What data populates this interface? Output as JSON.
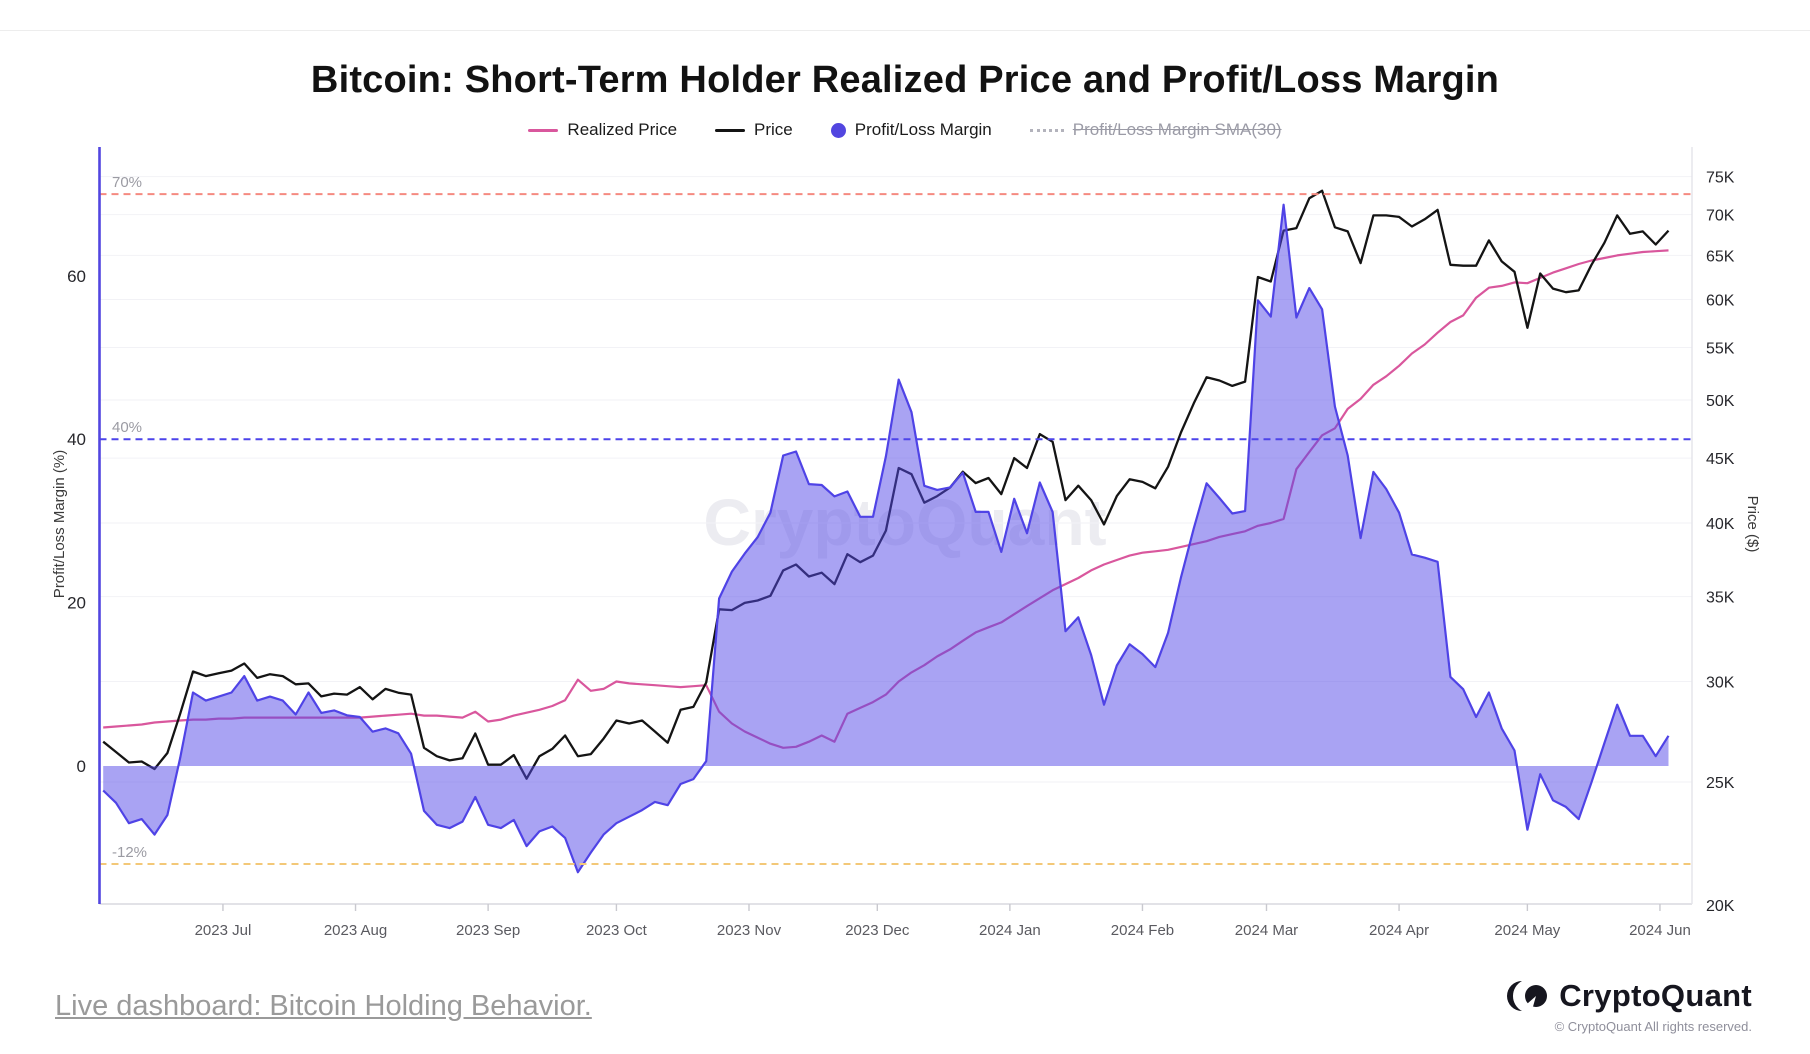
{
  "title": "Bitcoin: Short-Term Holder Realized Price and Profit/Loss Margin",
  "watermark": "CryptoQuant",
  "legend": {
    "items": [
      {
        "label": "Realized Price",
        "type": "line",
        "color": "#d9579d",
        "disabled": false
      },
      {
        "label": "Price",
        "type": "line",
        "color": "#141414",
        "disabled": false
      },
      {
        "label": "Profit/Loss Margin",
        "type": "dot",
        "color": "#5246e0",
        "disabled": false
      },
      {
        "label": "Profit/Loss Margin SMA(30)",
        "type": "dotted",
        "color": "#b3b3bc",
        "disabled": true
      }
    ]
  },
  "footer": {
    "link_text": "Live dashboard: Bitcoin Holding Behavior.",
    "brand_name": "CryptoQuant",
    "copyright": "© CryptoQuant All rights reserved."
  },
  "chart_data": {
    "type": "line+area",
    "x_start": "2023-06-03",
    "x_step_days": 3,
    "x_ticks": {
      "labels": [
        "2023 Jul",
        "2023 Aug",
        "2023 Sep",
        "2023 Oct",
        "2023 Nov",
        "2023 Dec",
        "2024 Jan",
        "2024 Feb",
        "2024 Mar",
        "2024 Apr",
        "2024 May",
        "2024 Jun"
      ],
      "day_offsets": [
        28,
        59,
        90,
        120,
        151,
        181,
        212,
        243,
        272,
        303,
        333,
        364
      ]
    },
    "y_left": {
      "label": "Profit/Loss Margin (%)",
      "ticks": [
        0,
        20,
        40,
        60
      ],
      "range": [
        -17.5,
        75.8
      ],
      "ref_lines": [
        {
          "value": 70,
          "label": "70%",
          "color": "#f58a80"
        },
        {
          "value": 40,
          "label": "40%",
          "color": "#4c43ea"
        },
        {
          "value": -12,
          "label": "-12%",
          "color": "#f3c878"
        }
      ]
    },
    "y_right": {
      "label": "Price ($)",
      "scale": "log",
      "ticks_k": [
        20,
        25,
        30,
        35,
        40,
        45,
        50,
        55,
        60,
        65,
        70,
        75
      ],
      "tick_suffix": "K"
    },
    "series": [
      {
        "name": "Profit/Loss Margin",
        "axis": "left",
        "unit": "%",
        "style": "area",
        "color": "#4f43e6",
        "values": [
          -3.0,
          -4.5,
          -7.0,
          -6.5,
          -8.4,
          -6.0,
          1.0,
          9.0,
          8.0,
          8.5,
          9.0,
          11.0,
          8.0,
          8.5,
          8.0,
          6.3,
          9.0,
          6.5,
          6.8,
          6.2,
          6.0,
          4.2,
          4.6,
          4.0,
          1.5,
          -5.5,
          -7.2,
          -7.6,
          -6.8,
          -3.8,
          -7.2,
          -7.6,
          -6.6,
          -9.8,
          -8.0,
          -7.4,
          -8.8,
          -13.0,
          -10.6,
          -8.4,
          -7.0,
          -6.2,
          -5.4,
          -4.4,
          -4.8,
          -2.2,
          -1.6,
          0.6,
          20.5,
          23.8,
          26.0,
          28.0,
          31.0,
          38.0,
          38.5,
          34.5,
          34.4,
          33.0,
          33.6,
          30.5,
          30.5,
          37.9,
          47.3,
          43.3,
          34.3,
          33.8,
          34.1,
          35.9,
          31.1,
          31.1,
          26.2,
          32.7,
          28.5,
          34.7,
          31.1,
          16.5,
          18.2,
          13.6,
          7.5,
          12.3,
          14.9,
          13.7,
          12.1,
          16.3,
          23.1,
          29.1,
          34.6,
          32.8,
          30.9,
          31.2,
          57.0,
          55.0,
          68.7,
          54.9,
          58.5,
          55.9,
          44.0,
          38.0,
          27.9,
          36.0,
          33.9,
          31.0,
          25.9,
          25.5,
          25.0,
          10.9,
          9.4,
          6.0,
          9.0,
          4.6,
          1.9,
          -7.8,
          -1.0,
          -4.2,
          -5.0,
          -6.5,
          -2.0,
          2.8,
          7.5,
          3.7,
          3.7,
          1.2,
          3.7
        ]
      },
      {
        "name": "Price",
        "axis": "right",
        "unit": "K$",
        "style": "line",
        "color": "#141414",
        "values": [
          26.9,
          26.4,
          25.9,
          25.95,
          25.6,
          26.35,
          28.3,
          30.55,
          30.3,
          30.45,
          30.6,
          31.0,
          30.2,
          30.4,
          30.3,
          29.85,
          29.9,
          29.2,
          29.35,
          29.3,
          29.7,
          29.05,
          29.6,
          29.4,
          29.3,
          26.6,
          26.2,
          26.0,
          26.1,
          27.3,
          25.8,
          25.8,
          26.25,
          25.15,
          26.2,
          26.55,
          27.2,
          26.2,
          26.3,
          27.05,
          27.95,
          27.8,
          27.95,
          27.4,
          26.85,
          28.5,
          28.65,
          29.95,
          34.2,
          34.15,
          34.6,
          34.75,
          35.05,
          36.7,
          37.1,
          36.3,
          36.55,
          35.8,
          37.8,
          37.25,
          37.7,
          39.45,
          44.2,
          43.7,
          41.5,
          42.0,
          42.65,
          43.9,
          43.0,
          43.4,
          42.15,
          45.0,
          44.2,
          47.0,
          46.35,
          41.7,
          42.8,
          41.7,
          39.9,
          42.0,
          43.3,
          43.1,
          42.6,
          44.3,
          47.15,
          49.7,
          52.1,
          51.8,
          51.3,
          51.7,
          62.5,
          62.0,
          68.0,
          68.3,
          72.1,
          73.1,
          68.4,
          67.9,
          64.1,
          69.9,
          69.9,
          69.7,
          68.5,
          69.4,
          70.6,
          63.9,
          63.8,
          63.8,
          66.8,
          64.3,
          63.1,
          57.0,
          62.9,
          61.2,
          60.8,
          61.0,
          63.9,
          66.5,
          69.9,
          67.6,
          67.9,
          66.3,
          68.0
        ]
      },
      {
        "name": "Realized Price",
        "axis": "right",
        "unit": "K$",
        "style": "line",
        "color": "#d9579d",
        "values": [
          27.6,
          27.65,
          27.7,
          27.75,
          27.85,
          27.9,
          27.95,
          28.0,
          28.0,
          28.05,
          28.05,
          28.1,
          28.1,
          28.1,
          28.1,
          28.1,
          28.1,
          28.1,
          28.1,
          28.1,
          28.1,
          28.15,
          28.2,
          28.25,
          28.3,
          28.2,
          28.2,
          28.15,
          28.1,
          28.4,
          27.9,
          28.0,
          28.2,
          28.35,
          28.5,
          28.7,
          29.0,
          30.1,
          29.5,
          29.6,
          30.0,
          29.9,
          29.85,
          29.8,
          29.75,
          29.7,
          29.75,
          29.8,
          28.4,
          27.8,
          27.4,
          27.1,
          26.8,
          26.6,
          26.65,
          26.9,
          27.2,
          26.9,
          28.3,
          28.6,
          28.9,
          29.3,
          30.0,
          30.5,
          30.9,
          31.4,
          31.8,
          32.3,
          32.8,
          33.1,
          33.4,
          33.9,
          34.4,
          34.9,
          35.4,
          35.8,
          36.2,
          36.7,
          37.1,
          37.4,
          37.7,
          37.9,
          38.0,
          38.1,
          38.3,
          38.5,
          38.7,
          39.0,
          39.2,
          39.4,
          39.8,
          40.0,
          40.3,
          44.1,
          45.5,
          46.9,
          47.5,
          49.2,
          50.1,
          51.4,
          52.2,
          53.2,
          54.4,
          55.3,
          56.5,
          57.6,
          58.3,
          60.2,
          61.3,
          61.5,
          61.9,
          61.8,
          62.4,
          63.0,
          63.5,
          64.0,
          64.4,
          64.7,
          65.0,
          65.2,
          65.4,
          65.5,
          65.6
        ]
      }
    ]
  }
}
